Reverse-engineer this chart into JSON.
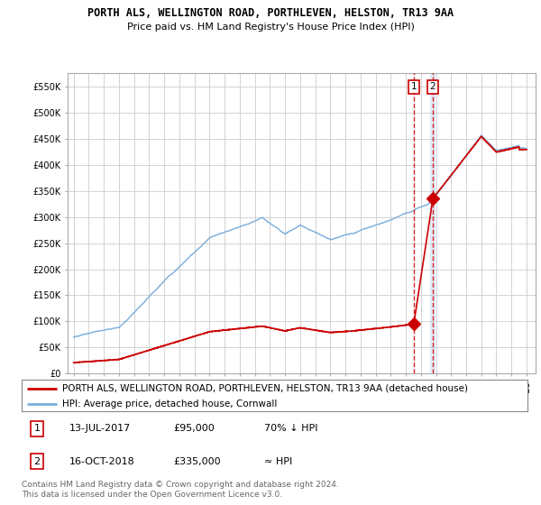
{
  "title": "PORTH ALS, WELLINGTON ROAD, PORTHLEVEN, HELSTON, TR13 9AA",
  "subtitle": "Price paid vs. HM Land Registry's House Price Index (HPI)",
  "ylim": [
    0,
    575000
  ],
  "yticks": [
    0,
    50000,
    100000,
    150000,
    200000,
    250000,
    300000,
    350000,
    400000,
    450000,
    500000,
    550000
  ],
  "ytick_labels": [
    "£0",
    "£50K",
    "£100K",
    "£150K",
    "£200K",
    "£250K",
    "£300K",
    "£350K",
    "£400K",
    "£450K",
    "£500K",
    "£550K"
  ],
  "xlim_start": 1994.6,
  "xlim_end": 2025.6,
  "hpi_color": "#7aaddb",
  "sale_color": "#cc0000",
  "vline1_color": "#cc0000",
  "vline2_color": "#aabbdd",
  "background_color": "#ffffff",
  "grid_color": "#cccccc",
  "sale1_x": 2017.53,
  "sale1_y": 95000,
  "sale2_x": 2018.79,
  "sale2_y": 335000,
  "legend_label1": "PORTH ALS, WELLINGTON ROAD, PORTHLEVEN, HELSTON, TR13 9AA (detached house)",
  "legend_label2": "HPI: Average price, detached house, Cornwall",
  "table_row1": [
    "1",
    "13-JUL-2017",
    "£95,000",
    "70% ↓ HPI"
  ],
  "table_row2": [
    "2",
    "16-OCT-2018",
    "£335,000",
    "≈ HPI"
  ],
  "footnote": "Contains HM Land Registry data © Crown copyright and database right 2024.\nThis data is licensed under the Open Government Licence v3.0.",
  "title_fontsize": 8.5,
  "subtitle_fontsize": 8,
  "tick_fontsize": 7,
  "legend_fontsize": 7.5,
  "table_fontsize": 8,
  "footnote_fontsize": 6.5
}
